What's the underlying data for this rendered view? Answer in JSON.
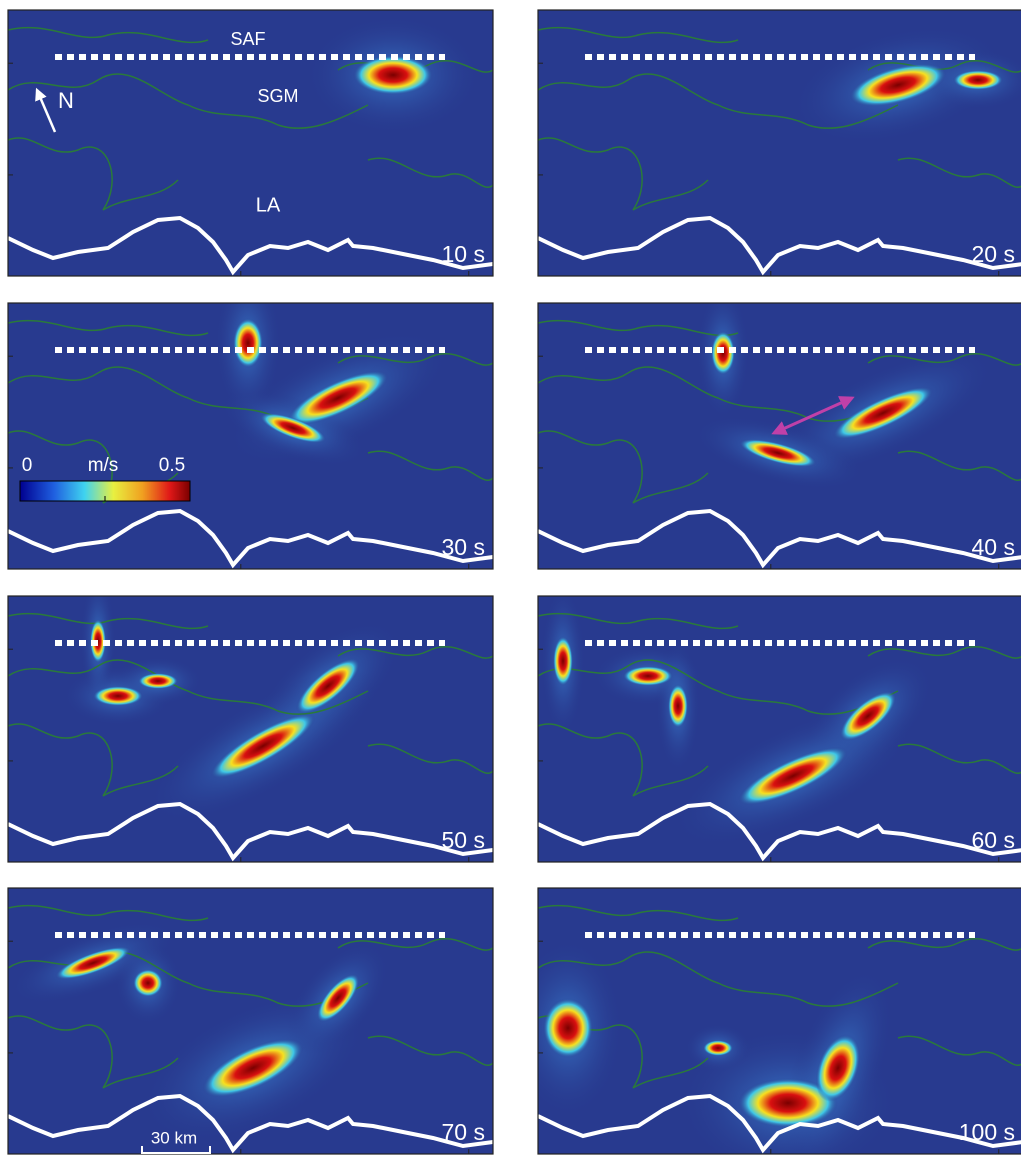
{
  "annotations": {
    "saf": "SAF",
    "sgm": "SGM",
    "north": "N",
    "la": "LA"
  },
  "colorbar": {
    "min": "0",
    "unit": "m/s",
    "max": "0.5"
  },
  "scale_bar": "30 km",
  "panels": [
    {
      "time": "10 s"
    },
    {
      "time": "20 s"
    },
    {
      "time": "30 s"
    },
    {
      "time": "40 s"
    },
    {
      "time": "50 s"
    },
    {
      "time": "60 s"
    },
    {
      "time": "70 s"
    },
    {
      "time": "100 s"
    }
  ]
}
